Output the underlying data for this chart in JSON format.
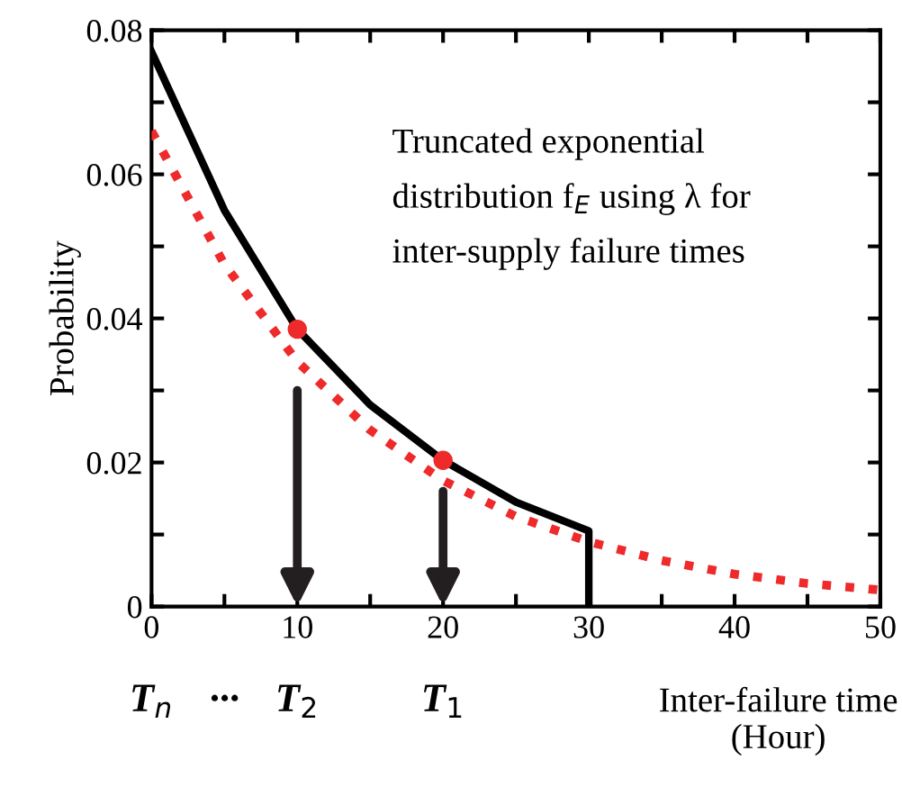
{
  "chart_data": {
    "type": "line",
    "ylabel": "Probability",
    "xlabel": "Inter-failure time\n(Hour)",
    "xlim": [
      0,
      50
    ],
    "ylim": [
      0,
      0.08
    ],
    "xticks": [
      0,
      {
        "value": 5,
        "label": null
      },
      10,
      {
        "value": 15,
        "label": null
      },
      20,
      {
        "value": 25,
        "label": null
      },
      30,
      {
        "value": 35,
        "label": null
      },
      40,
      {
        "value": 45,
        "label": null
      },
      50
    ],
    "yticks": [
      0,
      {
        "value": 0.01,
        "label": null
      },
      0.02,
      {
        "value": 0.03,
        "label": null
      },
      0.04,
      {
        "value": 0.05,
        "label": null
      },
      0.06,
      {
        "value": 0.07,
        "label": null
      },
      0.08
    ],
    "grid": false,
    "legend": false,
    "series": [
      {
        "type": "line",
        "color": "#000000",
        "line_style": "solid",
        "marker": "none",
        "x": [
          0,
          5,
          10,
          15,
          20,
          25,
          30,
          30
        ],
        "values": [
          0.077,
          0.055,
          0.0385,
          0.028,
          0.0203,
          0.0145,
          0.0105,
          0
        ]
      },
      {
        "type": "line",
        "color": "#ee2a2a",
        "line_style": "dotted",
        "marker": "none",
        "x": [
          0,
          5,
          10,
          15,
          20,
          25,
          30,
          35,
          40,
          45,
          50
        ],
        "values": [
          0.066,
          0.0475,
          0.034,
          0.0245,
          0.0175,
          0.0125,
          0.009,
          0.0064,
          0.0045,
          0.0032,
          0.0023
        ]
      },
      {
        "type": "scatter",
        "color": "#ee2a2a",
        "marker": "circle",
        "x": [
          10,
          20
        ],
        "values": [
          0.0385,
          0.0203
        ]
      }
    ],
    "annotations": [
      "Truncated exponential",
      "distribution f$_{E}$ using λ for",
      "inter-supply failure times",
      "T$_{n}$",
      "···",
      "T$_{2}$",
      "T$_{1}$"
    ]
  }
}
